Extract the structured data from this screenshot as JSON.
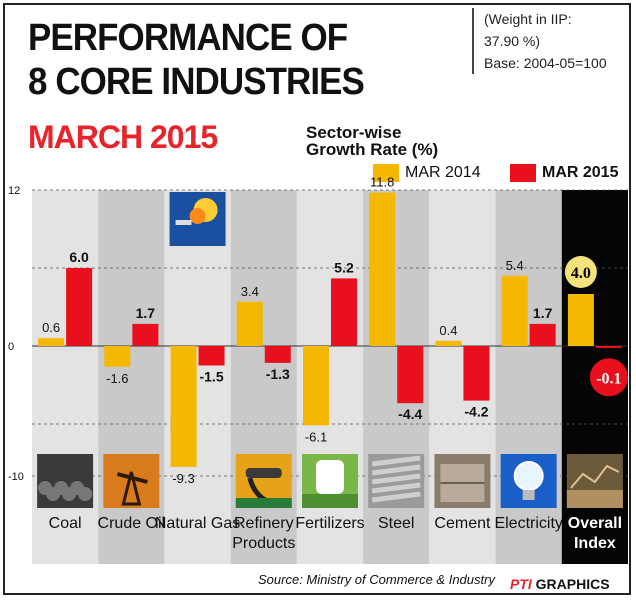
{
  "header": {
    "title_line1": "PERFORMANCE OF",
    "title_line2": "8 CORE INDUSTRIES",
    "subtitle": "MARCH 2015",
    "weight_line1": "(Weight in IIP:",
    "weight_line2": "37.90 %)",
    "weight_line3": "Base: 2004-05=100"
  },
  "footer": {
    "source": "Source: Ministry of Commerce & Industry",
    "brand_mark": "PTI",
    "brand_text": "GRAPHICS"
  },
  "colors": {
    "mar2014": "#f5b800",
    "mar2015": "#e8101c",
    "panel_light": "#e3e3e3",
    "panel_dark": "#c9c9c9",
    "overall_bg": "#050505",
    "highlight": "#f5e27a"
  },
  "chart_data": {
    "type": "bar",
    "ylabel": "Sector-wise Growth Rate (%)",
    "ylim": [
      -12,
      12
    ],
    "yticks": [
      "12",
      "0",
      "-10"
    ],
    "categories": [
      "Coal",
      "Crude Oil",
      "Natural Gas",
      "Refinery Products",
      "Fertilizers",
      "Steel",
      "Cement",
      "Electricity",
      "Overall Index"
    ],
    "category_icons": [
      "coal-icon",
      "crude-oil-pump-icon",
      "gas-flare-icon",
      "fuel-nozzle-icon",
      "fertilizer-sack-icon",
      "steel-rods-icon",
      "cement-icon",
      "light-bulb-icon",
      "overall-index-icon"
    ],
    "series": [
      {
        "name": "MAR 2014",
        "values": [
          0.6,
          -1.6,
          -9.3,
          3.4,
          -6.1,
          11.8,
          0.4,
          5.4,
          4.0
        ],
        "labels": [
          "0.6",
          "-1.6",
          "-9.3",
          "3.4",
          "-6.1",
          "11.8",
          "0.4",
          "5.4",
          "4.0"
        ]
      },
      {
        "name": "MAR 2015",
        "values": [
          6.0,
          1.7,
          -1.5,
          -1.3,
          5.2,
          -4.4,
          -4.2,
          1.7,
          -0.1
        ],
        "labels": [
          "6.0",
          "1.7",
          "-1.5",
          "-1.3",
          "5.2",
          "-4.4",
          "-4.2",
          "1.7",
          "-0.1"
        ]
      }
    ],
    "legend_position": "top-right",
    "grid": true
  }
}
